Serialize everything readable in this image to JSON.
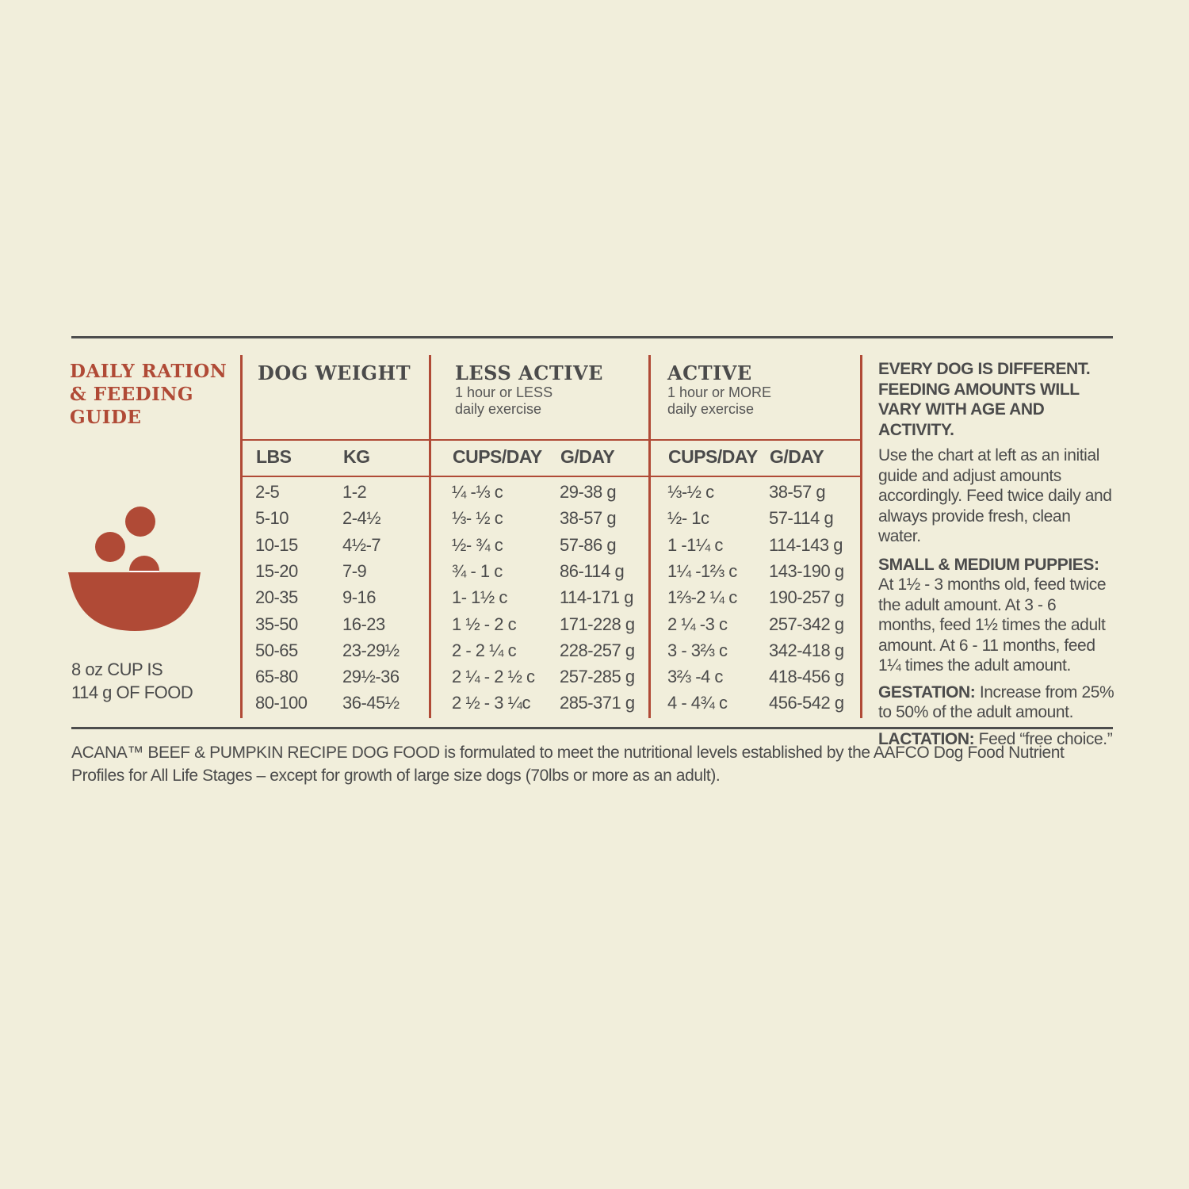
{
  "title": "DAILY RATION & FEEDING GUIDE",
  "cup_note": [
    "8 oz CUP IS",
    "114 g OF FOOD"
  ],
  "groups": {
    "dog_weight": {
      "title": "DOG WEIGHT"
    },
    "less_active": {
      "title": "LESS ACTIVE",
      "sub1": "1 hour or LESS",
      "sub2": "daily exercise"
    },
    "active": {
      "title": "ACTIVE",
      "sub1": "1 hour or MORE",
      "sub2": "daily exercise"
    }
  },
  "columns": [
    "LBS",
    "KG",
    "CUPS/DAY",
    "G/DAY",
    "CUPS/DAY",
    "G/DAY"
  ],
  "rows": [
    [
      "2-5",
      "1-2",
      "¼ -⅓ c",
      "29-38 g",
      "⅓-½ c",
      "38-57 g"
    ],
    [
      "5-10",
      "2-4½",
      "⅓- ½ c",
      "38-57 g",
      "½- 1c",
      "57-114 g"
    ],
    [
      "10-15",
      "4½-7",
      "½- ¾ c",
      "57-86 g",
      "1 -1¼ c",
      "114-143 g"
    ],
    [
      "15-20",
      "7-9",
      "¾ - 1 c",
      "86-114 g",
      "1¼ -1⅔ c",
      "143-190 g"
    ],
    [
      "20-35",
      "9-16",
      "1- 1½ c",
      "114-171 g",
      "1⅔-2 ¼ c",
      "190-257 g"
    ],
    [
      "35-50",
      "16-23",
      "1 ½ - 2 c",
      "171-228 g",
      "2 ¼ -3 c",
      "257-342 g"
    ],
    [
      "50-65",
      "23-29½",
      "2 - 2 ¼ c",
      "228-257 g",
      "3 - 3⅔ c",
      "342-418 g"
    ],
    [
      "65-80",
      "29½-36",
      "2 ¼ - 2 ½ c",
      "257-285 g",
      "3⅔ -4 c",
      "418-456 g"
    ],
    [
      "80-100",
      "36-45½",
      "2 ½ - 3 ¼c",
      "285-371 g",
      "4 - 4¾ c",
      "456-542 g"
    ]
  ],
  "side": {
    "heading": "EVERY DOG IS DIFFERENT. FEEDING AMOUNTS WILL VARY WITH AGE AND ACTIVITY.",
    "intro": "Use the chart at left as an initial guide and adjust amounts accordingly. Feed twice daily and always provide fresh, clean water.",
    "puppies_label": "SMALL & MEDIUM PUPPIES:",
    "puppies_text": "At 1½ - 3 months old, feed twice the adult amount. At 3 - 6 months, feed 1½ times the adult amount. At 6 - 11 months, feed 1¼ times the adult amount.",
    "gestation_label": "GESTATION:",
    "gestation_text": " Increase from 25% to 50% of the adult amount.",
    "lactation_label": "LACTATION:",
    "lactation_text": " Feed “free choice.”"
  },
  "footer": "ACANA™ BEEF & PUMPKIN RECIPE DOG FOOD is formulated to meet the nutritional levels established by the AAFCO Dog Food Nutrient Profiles for All Life Stages – except for growth of large size dogs (70lbs or more as an adult).",
  "colors": {
    "background": "#f1eedb",
    "accent": "#b04a36",
    "text": "#4b4b4b"
  },
  "icons": [
    "food-bowl-icon"
  ]
}
